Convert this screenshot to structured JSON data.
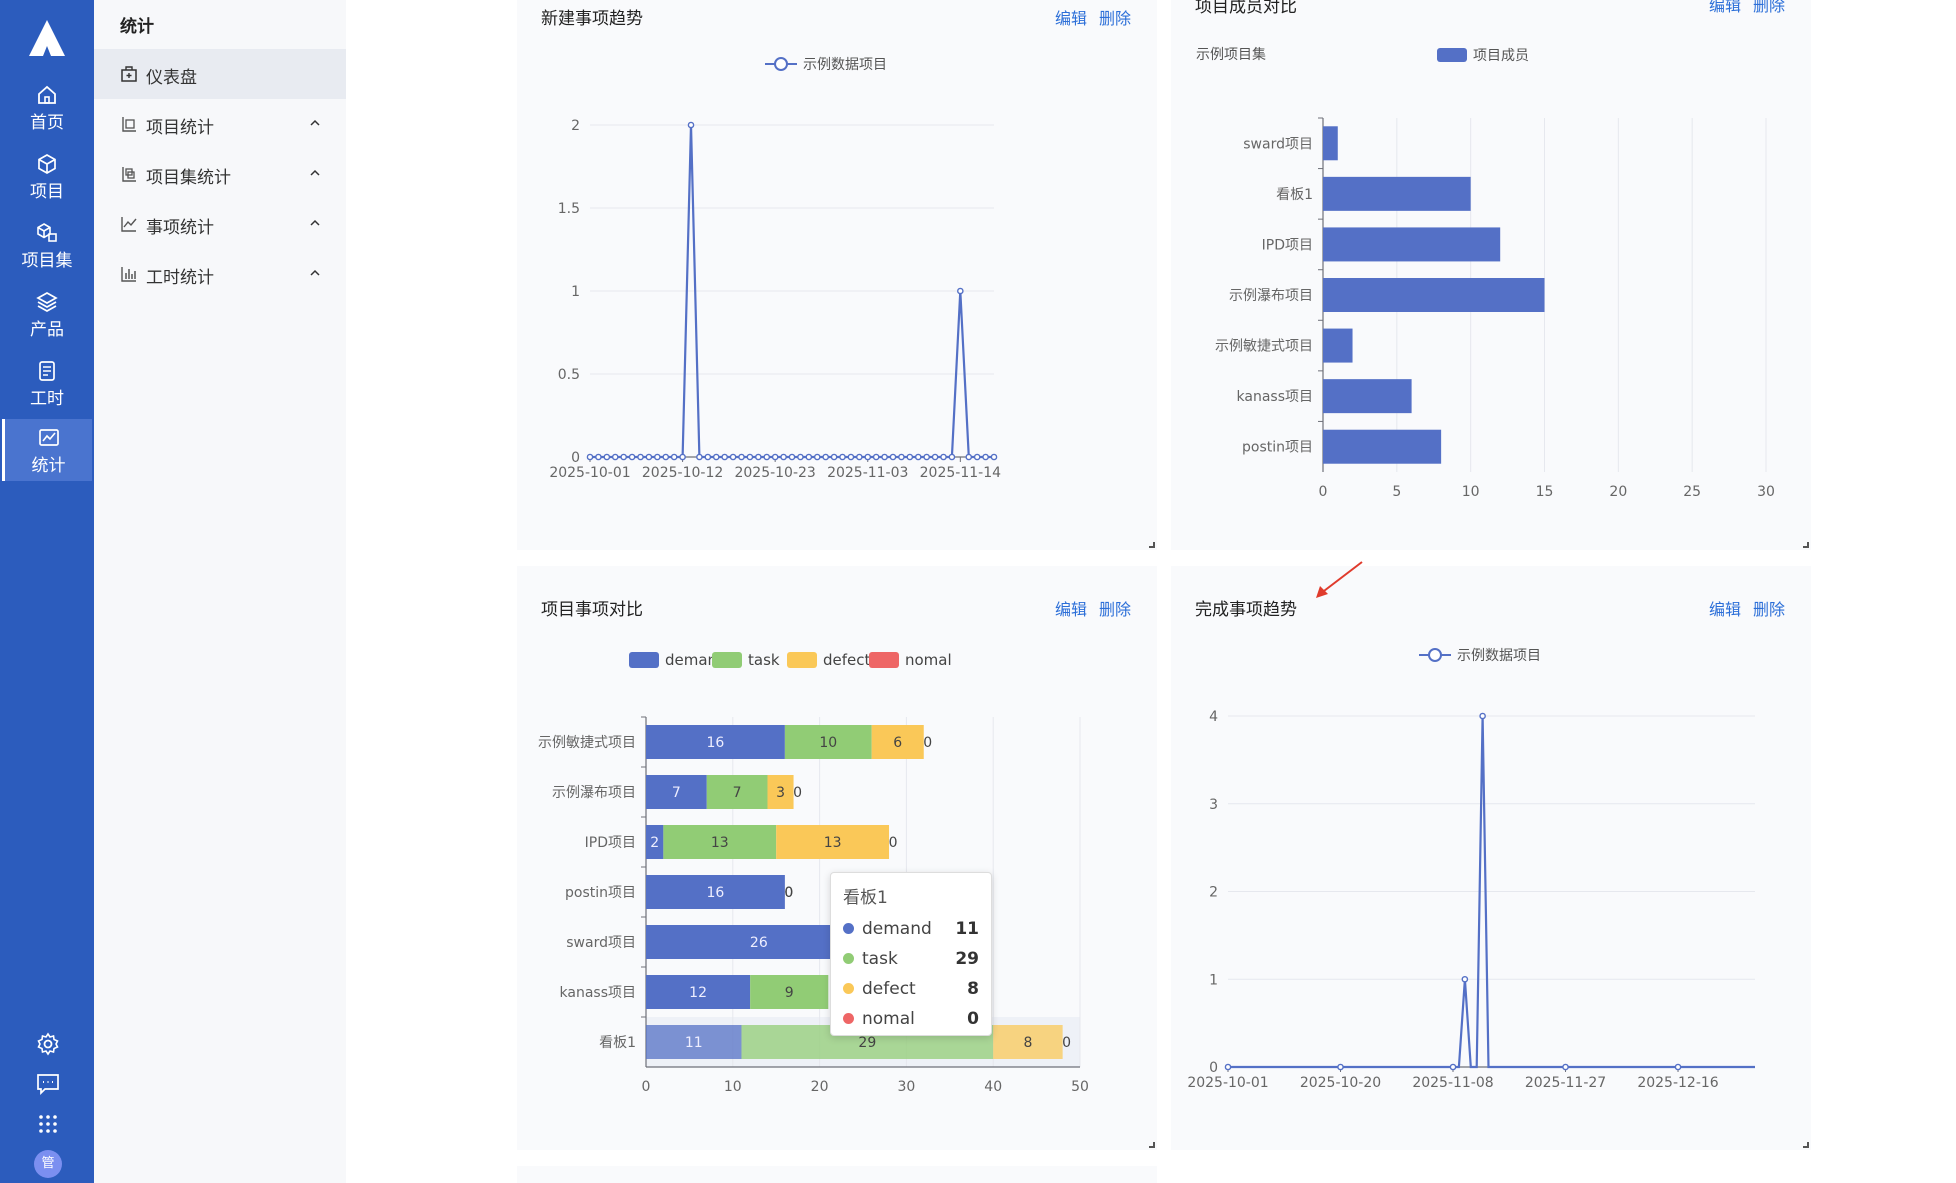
{
  "nav": {
    "items": [
      {
        "label": "首页",
        "icon": "home-icon"
      },
      {
        "label": "项目",
        "icon": "cube-icon"
      },
      {
        "label": "项目集",
        "icon": "cubes-icon"
      },
      {
        "label": "产品",
        "icon": "layers-icon"
      },
      {
        "label": "工时",
        "icon": "clipboard-icon"
      },
      {
        "label": "统计",
        "icon": "chart-icon"
      }
    ],
    "user_initial": "管"
  },
  "side": {
    "title": "统计",
    "items": [
      {
        "label": "仪表盘"
      },
      {
        "label": "项目统计"
      },
      {
        "label": "项目集统计"
      },
      {
        "label": "事项统计"
      },
      {
        "label": "工时统计"
      }
    ]
  },
  "cards": {
    "edit": "编辑",
    "delete": "删除"
  },
  "chart_data": [
    {
      "type": "line",
      "title": "新建事项趋势",
      "series": [
        {
          "name": "示例数据项目",
          "points": [
            [
              "2025-10-01",
              0
            ],
            [
              "2025-10-12",
              0
            ],
            [
              "2025-10-13",
              2
            ],
            [
              "2025-10-14",
              0
            ],
            [
              "2025-11-13",
              0
            ],
            [
              "2025-11-14",
              1
            ],
            [
              "2025-11-15",
              0
            ],
            [
              "2025-11-18",
              0
            ]
          ]
        }
      ],
      "x_ticks": [
        "2025-10-01",
        "2025-10-12",
        "2025-10-23",
        "2025-11-03",
        "2025-11-14"
      ],
      "y_ticks": [
        "0",
        "0.5",
        "1",
        "1.5",
        "2"
      ],
      "ylim": [
        0,
        2
      ]
    },
    {
      "type": "bar",
      "orientation": "horizontal",
      "title": "项目成员对比",
      "subtitle": "示例项目集",
      "categories": [
        "sward项目",
        "看板1",
        "IPD项目",
        "示例瀑布项目",
        "示例敏捷式项目",
        "kanass项目",
        "postin项目"
      ],
      "series": [
        {
          "name": "项目成员",
          "values": [
            1,
            10,
            12,
            15,
            2,
            6,
            8
          ]
        }
      ],
      "x_ticks": [
        "0",
        "5",
        "10",
        "15",
        "20",
        "25",
        "30"
      ],
      "xlim": [
        0,
        30
      ]
    },
    {
      "type": "bar",
      "orientation": "horizontal",
      "stacked": true,
      "title": "项目事项对比",
      "categories": [
        "示例敏捷式项目",
        "示例瀑布项目",
        "IPD项目",
        "postin项目",
        "sward项目",
        "kanass项目",
        "看板1"
      ],
      "series": [
        {
          "name": "demand",
          "values": [
            16,
            7,
            2,
            16,
            26,
            12,
            11
          ]
        },
        {
          "name": "task",
          "values": [
            10,
            7,
            13,
            0,
            0,
            9,
            29
          ]
        },
        {
          "name": "defect",
          "values": [
            6,
            3,
            13,
            0,
            0,
            0,
            8
          ]
        },
        {
          "name": "nomal",
          "values": [
            0,
            0,
            0,
            0,
            0,
            0,
            0
          ]
        }
      ],
      "x_ticks": [
        "0",
        "10",
        "20",
        "30",
        "40",
        "50"
      ],
      "xlim": [
        0,
        50
      ],
      "tooltip": {
        "title": "看板1",
        "rows": [
          {
            "name": "demand",
            "value": "11"
          },
          {
            "name": "task",
            "value": "29"
          },
          {
            "name": "defect",
            "value": "8"
          },
          {
            "name": "nomal",
            "value": "0"
          }
        ]
      }
    },
    {
      "type": "line",
      "title": "完成事项趋势",
      "series": [
        {
          "name": "示例数据项目",
          "points": [
            [
              "2025-10-01",
              0
            ],
            [
              "2025-11-09",
              0
            ],
            [
              "2025-11-10",
              1
            ],
            [
              "2025-11-11",
              0
            ],
            [
              "2025-11-12",
              0
            ],
            [
              "2025-11-13",
              4
            ],
            [
              "2025-11-14",
              0
            ],
            [
              "2025-12-29",
              0
            ]
          ]
        }
      ],
      "x_ticks": [
        "2025-10-01",
        "2025-10-20",
        "2025-11-08",
        "2025-11-27",
        "2025-12-16"
      ],
      "y_ticks": [
        "0",
        "1",
        "2",
        "3",
        "4"
      ],
      "ylim": [
        0,
        4
      ]
    }
  ],
  "colors": {
    "nav_bg": "#2c5cbd",
    "series_blue": "#5470c6",
    "series_green": "#91cc75",
    "series_yellow": "#fac858",
    "series_red": "#ee6666",
    "link": "#2c6fd8",
    "annotation_arrow": "#e03b2c"
  }
}
